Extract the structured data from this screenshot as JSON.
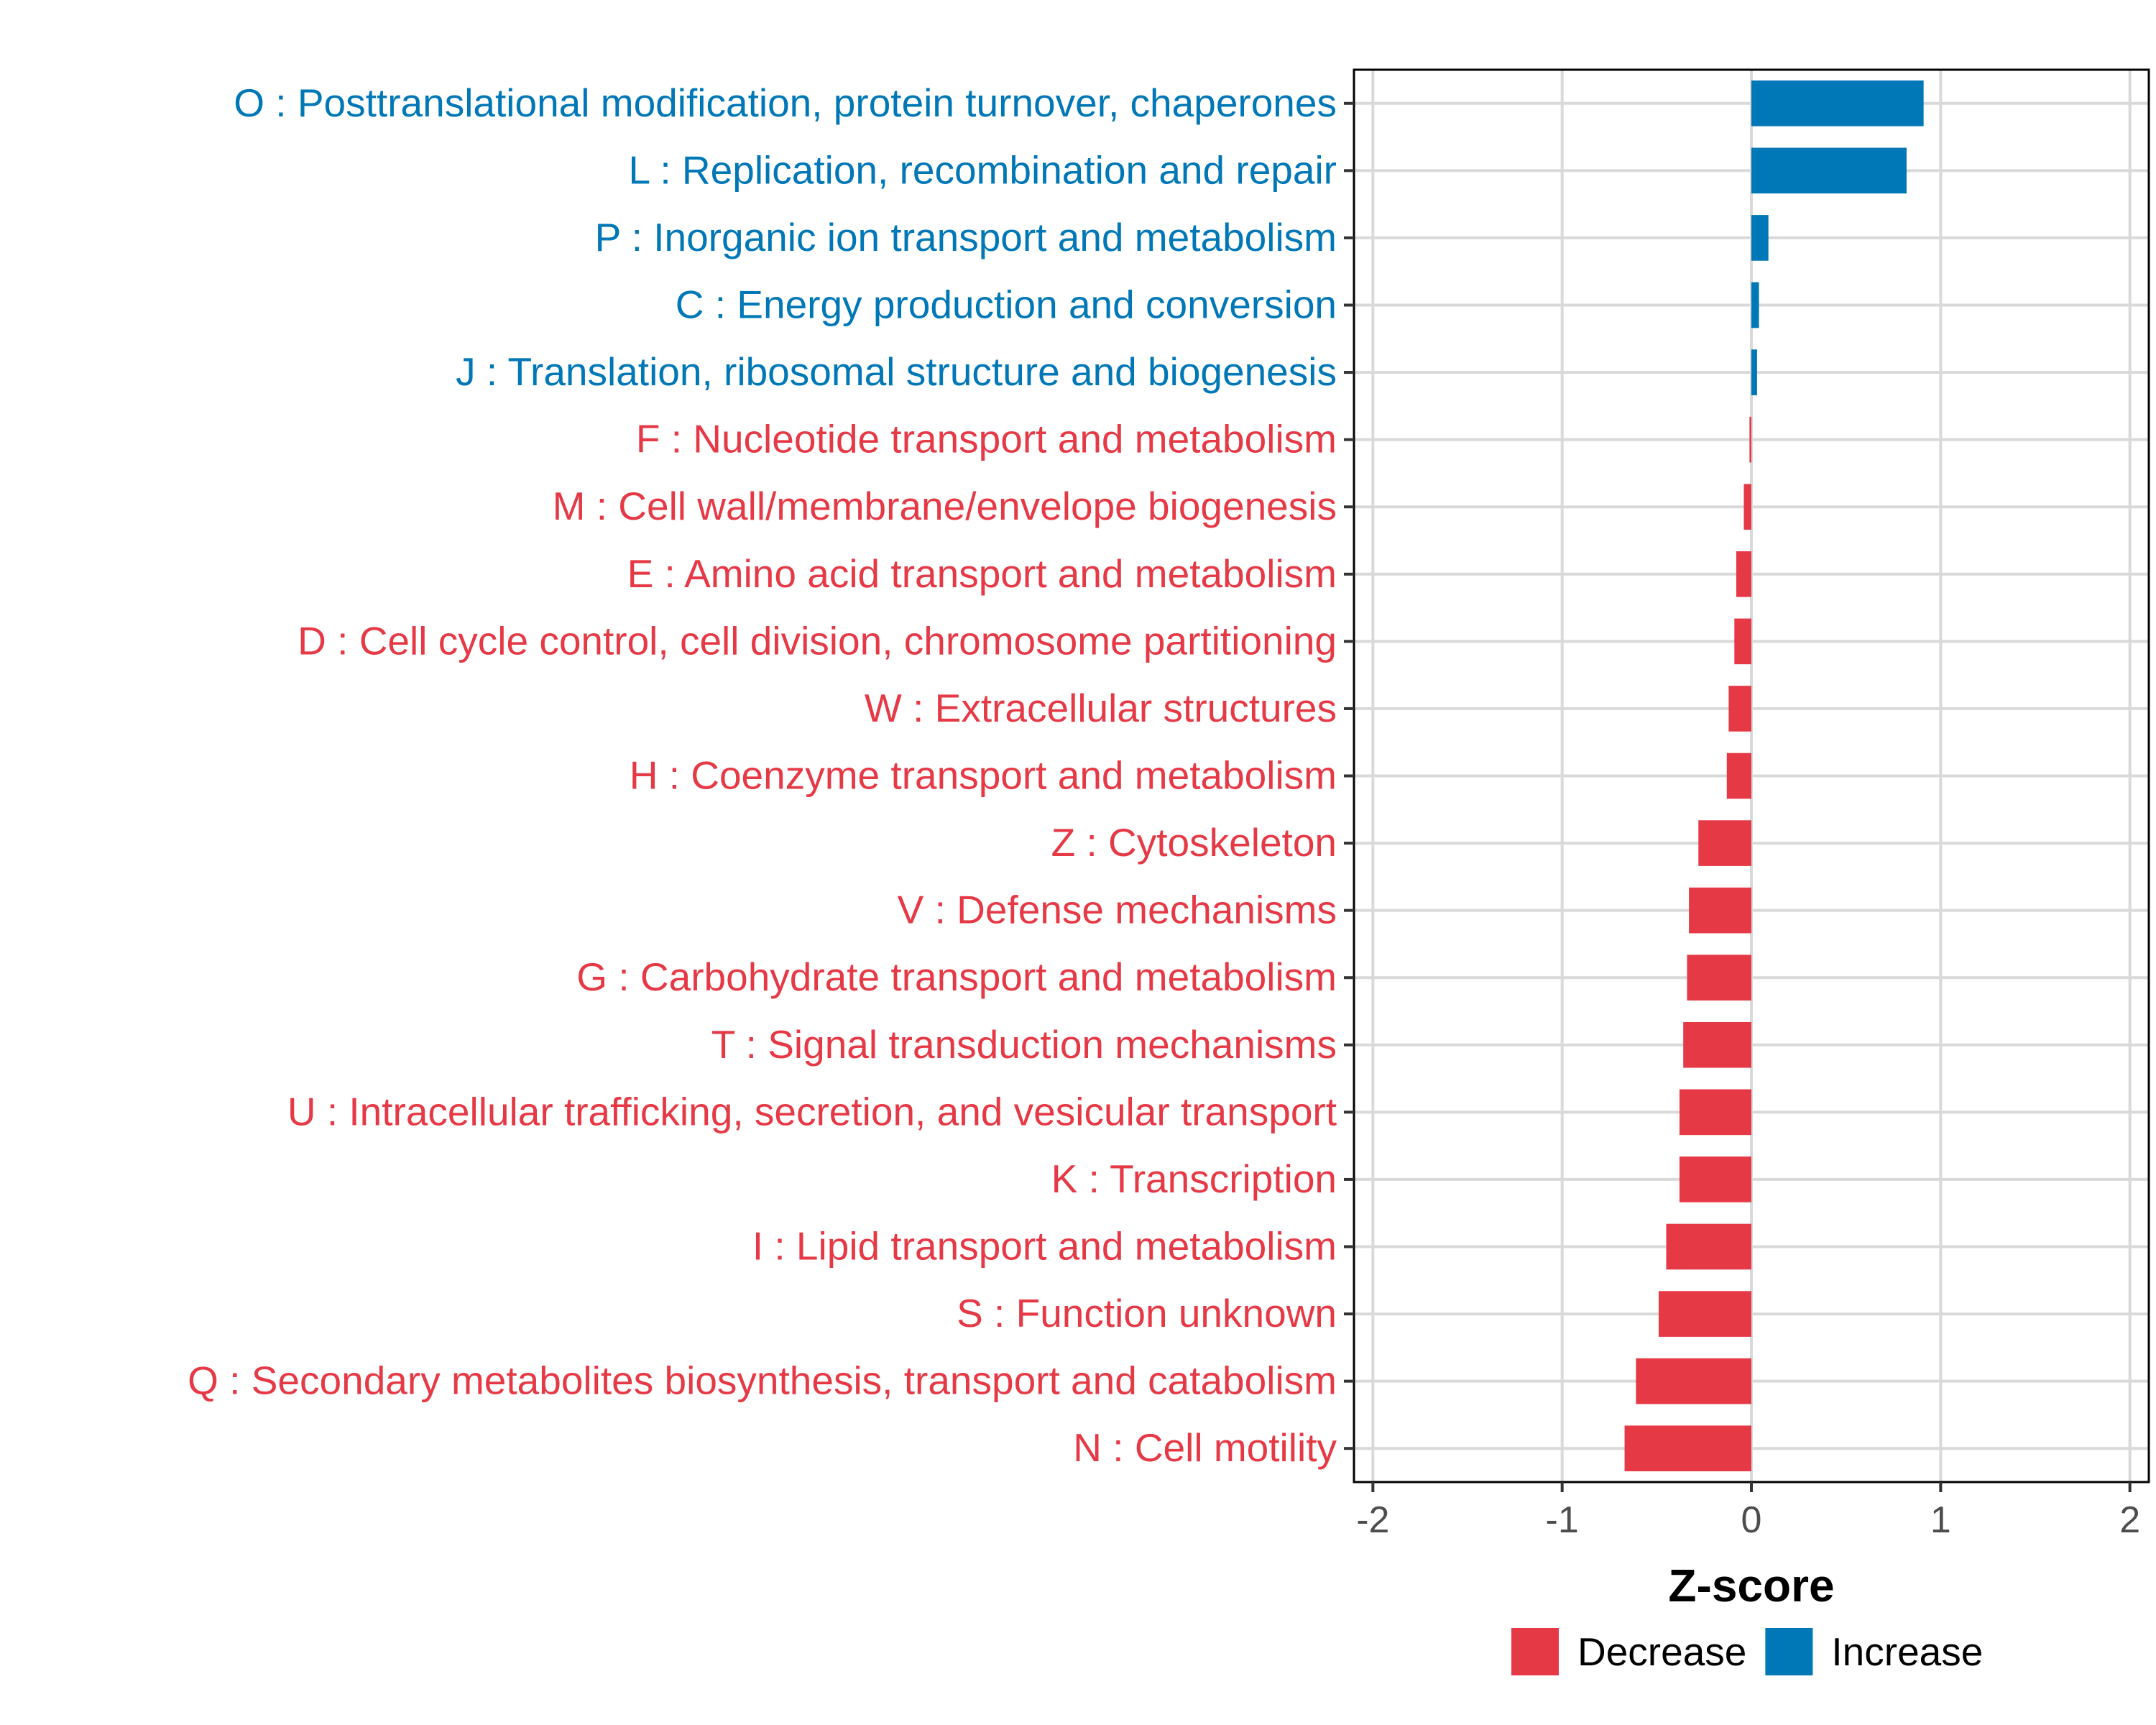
{
  "chart_data": {
    "type": "bar",
    "orientation": "horizontal",
    "title": "",
    "xlabel": "Z-score",
    "ylabel": "",
    "xlim": [
      -2.1,
      2.1
    ],
    "x_ticks": [
      -2,
      -1,
      0,
      1,
      2
    ],
    "x_tick_labels": [
      "-2",
      "-1",
      "0",
      "1",
      "2"
    ],
    "grid": true,
    "legend_position": "bottom",
    "colors": {
      "Decrease": "#E63946",
      "Increase": "#0077B6",
      "axis": "#000000",
      "grid": "#D9D9D9",
      "tick_label": "#4D4D4D"
    },
    "legend": [
      {
        "name": "Decrease",
        "color": "#E63946"
      },
      {
        "name": "Increase",
        "color": "#0077B6"
      }
    ],
    "categories": [
      {
        "label": "O : Posttranslational modification, protein turnover, chaperones",
        "value": 0.91,
        "group": "Increase"
      },
      {
        "label": "L : Replication, recombination and repair",
        "value": 0.82,
        "group": "Increase"
      },
      {
        "label": "P : Inorganic ion transport and metabolism",
        "value": 0.09,
        "group": "Increase"
      },
      {
        "label": "C : Energy production and conversion",
        "value": 0.04,
        "group": "Increase"
      },
      {
        "label": "J : Translation, ribosomal structure and biogenesis",
        "value": 0.03,
        "group": "Increase"
      },
      {
        "label": "F : Nucleotide transport and metabolism",
        "value": -0.01,
        "group": "Decrease"
      },
      {
        "label": "M : Cell wall/membrane/envelope biogenesis",
        "value": -0.04,
        "group": "Decrease"
      },
      {
        "label": "E : Amino acid transport and metabolism",
        "value": -0.08,
        "group": "Decrease"
      },
      {
        "label": "D : Cell cycle control, cell division, chromosome partitioning",
        "value": -0.09,
        "group": "Decrease"
      },
      {
        "label": "W : Extracellular structures",
        "value": -0.12,
        "group": "Decrease"
      },
      {
        "label": "H : Coenzyme transport and metabolism",
        "value": -0.13,
        "group": "Decrease"
      },
      {
        "label": "Z : Cytoskeleton",
        "value": -0.28,
        "group": "Decrease"
      },
      {
        "label": "V : Defense mechanisms",
        "value": -0.33,
        "group": "Decrease"
      },
      {
        "label": "G : Carbohydrate transport and metabolism",
        "value": -0.34,
        "group": "Decrease"
      },
      {
        "label": "T : Signal transduction mechanisms",
        "value": -0.36,
        "group": "Decrease"
      },
      {
        "label": "U : Intracellular trafficking, secretion, and vesicular transport",
        "value": -0.38,
        "group": "Decrease"
      },
      {
        "label": "K : Transcription",
        "value": -0.38,
        "group": "Decrease"
      },
      {
        "label": "I : Lipid transport and metabolism",
        "value": -0.45,
        "group": "Decrease"
      },
      {
        "label": "S : Function unknown",
        "value": -0.49,
        "group": "Decrease"
      },
      {
        "label": "Q : Secondary metabolites biosynthesis, transport and catabolism",
        "value": -0.61,
        "group": "Decrease"
      },
      {
        "label": "N : Cell motility",
        "value": -0.67,
        "group": "Decrease"
      }
    ]
  }
}
